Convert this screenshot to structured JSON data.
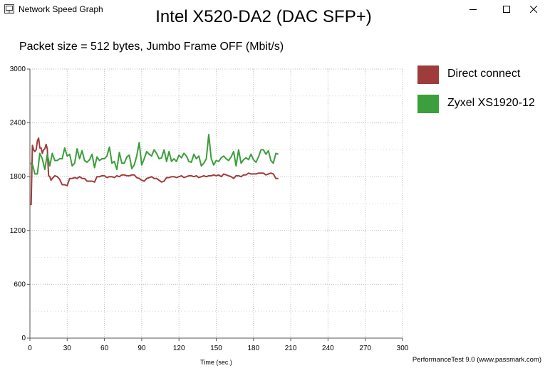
{
  "window": {
    "title": "Network Speed Graph",
    "icon": "network-speed-app-icon",
    "controls": [
      "minimize-icon",
      "maximize-icon",
      "close-icon"
    ]
  },
  "footer": {
    "note": "PerformanceTest 9.0 (www.passmark.com)"
  },
  "chart_data": {
    "type": "line",
    "title": "Intel X520-DA2 (DAC SFP+)",
    "subtitle": "Packet size = 512 bytes, Jumbo Frame OFF (Mbit/s)",
    "xlabel": "Time (sec.)",
    "ylabel": "",
    "xlim": [
      0,
      300
    ],
    "ylim": [
      0,
      3000
    ],
    "xticks": [
      0,
      30,
      60,
      90,
      120,
      150,
      180,
      210,
      240,
      270,
      300
    ],
    "yticks": [
      0,
      600,
      1200,
      1800,
      2400,
      3000
    ],
    "grid": true,
    "legend_position": "top-right",
    "series": [
      {
        "name": "Direct connect",
        "color": "#9e3c3c",
        "x": [
          0,
          1,
          2,
          3,
          4,
          5,
          6,
          7,
          8,
          9,
          10,
          11,
          12,
          13,
          14,
          15,
          16,
          17,
          18,
          20,
          22,
          24,
          26,
          28,
          30,
          32,
          34,
          36,
          38,
          40,
          42,
          44,
          46,
          48,
          50,
          52,
          54,
          56,
          58,
          60,
          62,
          64,
          66,
          68,
          70,
          72,
          74,
          76,
          78,
          80,
          82,
          84,
          86,
          88,
          90,
          92,
          94,
          96,
          98,
          100,
          102,
          104,
          106,
          108,
          110,
          112,
          114,
          116,
          118,
          120,
          122,
          124,
          126,
          128,
          130,
          132,
          134,
          136,
          138,
          140,
          142,
          144,
          146,
          148,
          150,
          152,
          154,
          156,
          158,
          160,
          162,
          164,
          166,
          168,
          170,
          172,
          174,
          176,
          178,
          180,
          182,
          184,
          186,
          188,
          190,
          192,
          194,
          196,
          198,
          200
        ],
        "values": [
          1490,
          1490,
          2150,
          2100,
          2080,
          2100,
          2200,
          2230,
          2120,
          2120,
          2060,
          2100,
          2110,
          2160,
          2110,
          1810,
          1800,
          1760,
          1780,
          1810,
          1800,
          1770,
          1710,
          1710,
          1700,
          1780,
          1780,
          1790,
          1780,
          1800,
          1780,
          1780,
          1750,
          1750,
          1750,
          1740,
          1800,
          1800,
          1810,
          1810,
          1790,
          1800,
          1800,
          1790,
          1810,
          1800,
          1820,
          1820,
          1810,
          1810,
          1820,
          1820,
          1790,
          1780,
          1760,
          1750,
          1780,
          1790,
          1800,
          1780,
          1780,
          1760,
          1740,
          1750,
          1790,
          1790,
          1800,
          1800,
          1790,
          1800,
          1810,
          1790,
          1800,
          1810,
          1810,
          1800,
          1810,
          1790,
          1800,
          1810,
          1800,
          1810,
          1810,
          1820,
          1810,
          1820,
          1800,
          1830,
          1820,
          1810,
          1800,
          1780,
          1810,
          1810,
          1800,
          1820,
          1820,
          1840,
          1830,
          1830,
          1830,
          1840,
          1840,
          1840,
          1820,
          1830,
          1840,
          1830,
          1780,
          1780
        ]
      },
      {
        "name": "Zyxel XS1920-12",
        "color": "#3c9e3c",
        "x": [
          0,
          2,
          4,
          6,
          8,
          10,
          12,
          14,
          16,
          18,
          20,
          22,
          24,
          26,
          28,
          30,
          32,
          34,
          36,
          38,
          40,
          42,
          44,
          46,
          48,
          50,
          52,
          54,
          56,
          58,
          60,
          62,
          64,
          66,
          68,
          70,
          72,
          74,
          76,
          78,
          80,
          82,
          84,
          86,
          88,
          90,
          92,
          94,
          96,
          98,
          100,
          102,
          104,
          106,
          108,
          110,
          112,
          114,
          116,
          118,
          120,
          122,
          124,
          126,
          128,
          130,
          132,
          134,
          136,
          138,
          140,
          142,
          144,
          146,
          148,
          150,
          152,
          154,
          156,
          158,
          160,
          162,
          164,
          166,
          168,
          170,
          172,
          174,
          176,
          178,
          180,
          182,
          184,
          186,
          188,
          190,
          192,
          194,
          196,
          198,
          200
        ],
        "values": [
          1950,
          1940,
          1830,
          1830,
          2060,
          2000,
          1880,
          2050,
          1920,
          2060,
          1980,
          1980,
          2000,
          2000,
          2120,
          2030,
          2050,
          1920,
          1950,
          2110,
          2000,
          2090,
          1980,
          1960,
          1990,
          2050,
          1900,
          2020,
          1980,
          2000,
          2000,
          2030,
          2130,
          1950,
          1970,
          1880,
          2070,
          1950,
          1950,
          2020,
          2040,
          1890,
          1930,
          2030,
          2180,
          1930,
          2000,
          2080,
          2050,
          2030,
          2100,
          2060,
          2000,
          2010,
          2100,
          1970,
          2080,
          1970,
          2000,
          1970,
          2040,
          2010,
          2060,
          2030,
          1970,
          1960,
          2050,
          2000,
          2030,
          1920,
          1950,
          2000,
          2270,
          2000,
          1930,
          1980,
          1970,
          2010,
          2030,
          2000,
          1980,
          2020,
          2080,
          1920,
          2100,
          1950,
          1990,
          2010,
          1990,
          2050,
          1990,
          1960,
          2020,
          2100,
          2100,
          2050,
          2090,
          1980,
          1950,
          2060,
          2050
        ]
      }
    ]
  }
}
